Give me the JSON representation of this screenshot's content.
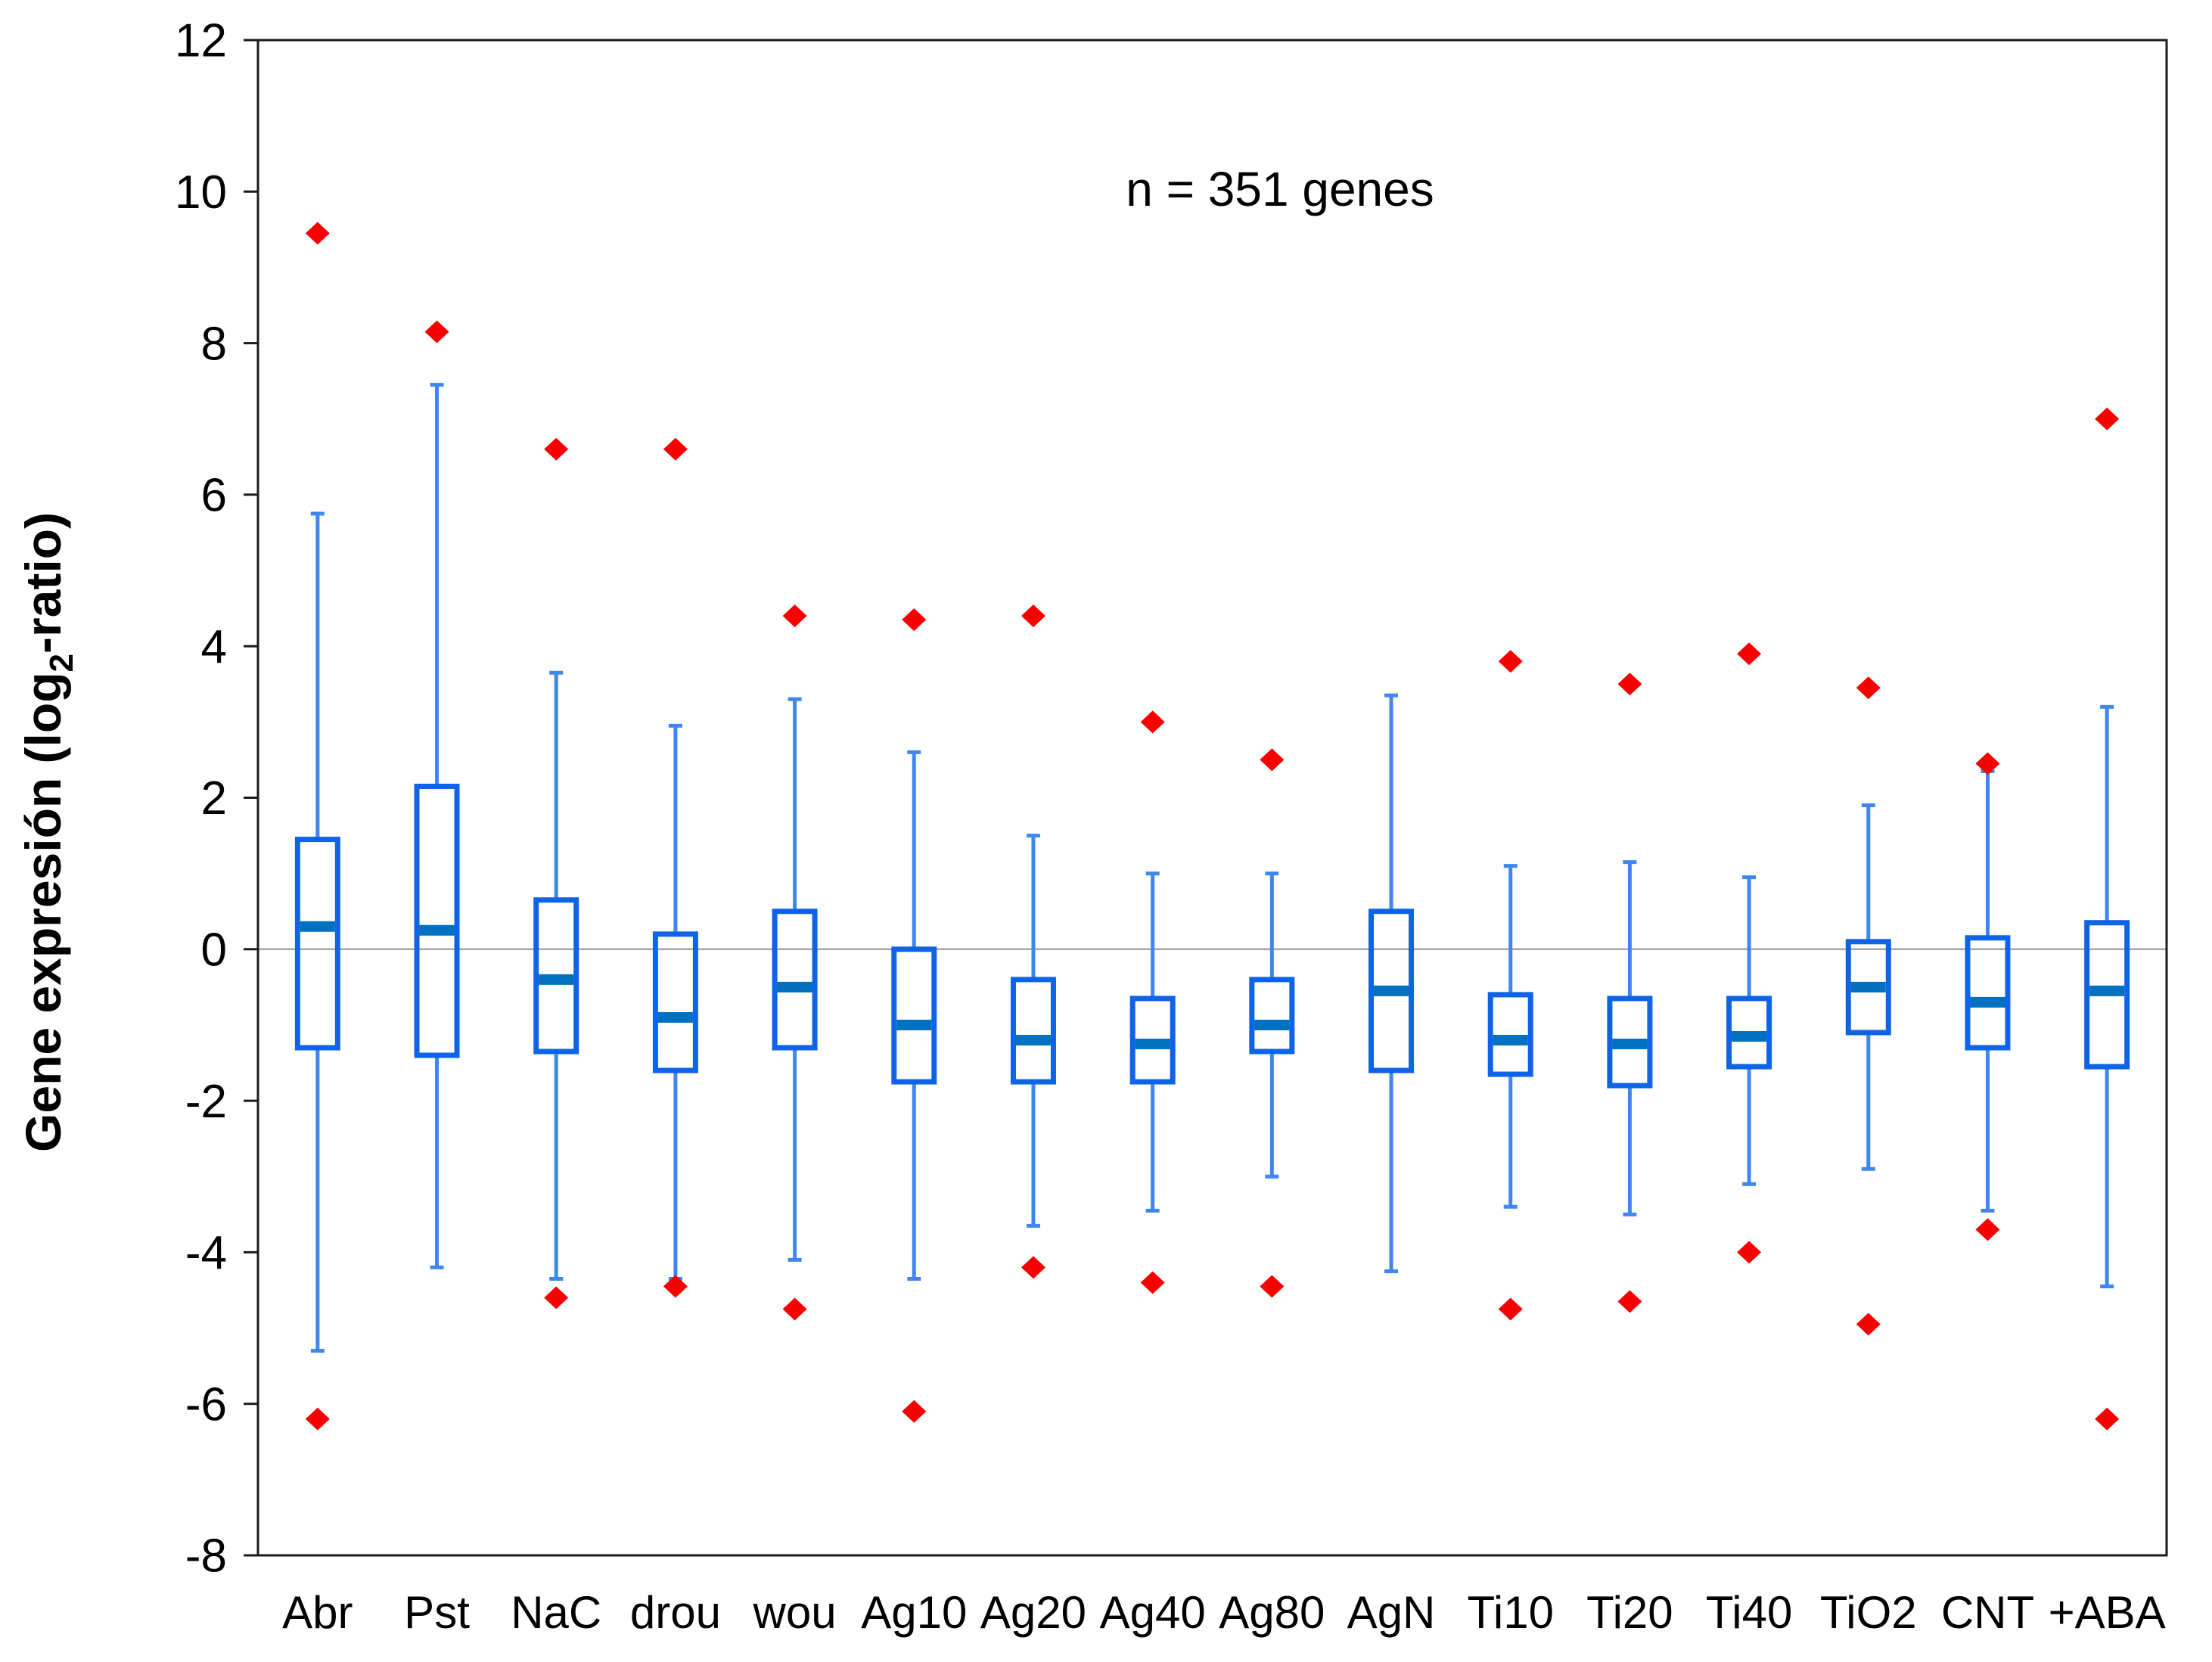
{
  "chart_data": {
    "type": "box",
    "annotation": "n = 351 genes",
    "ylabel": "Gene expresión (log2-ratio)",
    "ylabel_parts": {
      "pre": "Gene expresión (log",
      "sub": "2",
      "post": "-ratio)"
    },
    "xlabel": "",
    "ylim": [
      -8,
      12
    ],
    "ytick_step": 2,
    "yticks": [
      12,
      10,
      8,
      6,
      4,
      2,
      0,
      -2,
      -4,
      -6,
      -8
    ],
    "zero_line": true,
    "grid": false,
    "legend": false,
    "categories": [
      "Abr",
      "Pst",
      "NaC",
      "drou",
      "wou",
      "Ag10",
      "Ag20",
      "Ag40",
      "Ag80",
      "AgN",
      "Ti10",
      "Ti20",
      "Ti40",
      "TiO2",
      "CNT",
      "+ABA"
    ],
    "series": [
      {
        "label": "Abr",
        "whislo": -5.3,
        "q1": -1.3,
        "med": 0.3,
        "q3": 1.45,
        "whishi": 5.75,
        "outliers": [
          9.45,
          -6.2
        ]
      },
      {
        "label": "Pst",
        "whislo": -4.2,
        "q1": -1.4,
        "med": 0.25,
        "q3": 2.15,
        "whishi": 7.45,
        "outliers": [
          8.15
        ]
      },
      {
        "label": "NaC",
        "whislo": -4.35,
        "q1": -1.35,
        "med": -0.4,
        "q3": 0.65,
        "whishi": 3.65,
        "outliers": [
          6.6,
          -4.6
        ]
      },
      {
        "label": "drou",
        "whislo": -4.35,
        "q1": -1.6,
        "med": -0.9,
        "q3": 0.2,
        "whishi": 2.95,
        "outliers": [
          6.6,
          -4.45
        ]
      },
      {
        "label": "wou",
        "whislo": -4.1,
        "q1": -1.3,
        "med": -0.5,
        "q3": 0.5,
        "whishi": 3.3,
        "outliers": [
          4.4,
          -4.75
        ]
      },
      {
        "label": "Ag10",
        "whislo": -4.35,
        "q1": -1.75,
        "med": -1.0,
        "q3": 0.0,
        "whishi": 2.6,
        "outliers": [
          4.35,
          -6.1
        ]
      },
      {
        "label": "Ag20",
        "whislo": -3.65,
        "q1": -1.75,
        "med": -1.2,
        "q3": -0.4,
        "whishi": 1.5,
        "outliers": [
          4.4,
          -4.2
        ]
      },
      {
        "label": "Ag40",
        "whislo": -3.45,
        "q1": -1.75,
        "med": -1.25,
        "q3": -0.65,
        "whishi": 1.0,
        "outliers": [
          3.0,
          -4.4
        ]
      },
      {
        "label": "Ag80",
        "whislo": -3.0,
        "q1": -1.35,
        "med": -1.0,
        "q3": -0.4,
        "whishi": 1.0,
        "outliers": [
          2.5,
          -4.45
        ]
      },
      {
        "label": "AgN",
        "whislo": -4.25,
        "q1": -1.6,
        "med": -0.55,
        "q3": 0.5,
        "whishi": 3.35,
        "outliers": []
      },
      {
        "label": "Ti10",
        "whislo": -3.4,
        "q1": -1.65,
        "med": -1.2,
        "q3": -0.6,
        "whishi": 1.1,
        "outliers": [
          3.8,
          -4.75
        ]
      },
      {
        "label": "Ti20",
        "whislo": -3.5,
        "q1": -1.8,
        "med": -1.25,
        "q3": -0.65,
        "whishi": 1.15,
        "outliers": [
          3.5,
          -4.65
        ]
      },
      {
        "label": "Ti40",
        "whislo": -3.1,
        "q1": -1.55,
        "med": -1.15,
        "q3": -0.65,
        "whishi": 0.95,
        "outliers": [
          3.9,
          -4.0
        ]
      },
      {
        "label": "TiO2",
        "whislo": -2.9,
        "q1": -1.1,
        "med": -0.5,
        "q3": 0.1,
        "whishi": 1.9,
        "outliers": [
          3.45,
          -4.95
        ]
      },
      {
        "label": "CNT",
        "whislo": -3.45,
        "q1": -1.3,
        "med": -0.7,
        "q3": 0.15,
        "whishi": 2.35,
        "outliers": [
          2.45,
          -3.7
        ]
      },
      {
        "label": "+ABA",
        "whislo": -4.45,
        "q1": -1.55,
        "med": -0.55,
        "q3": 0.35,
        "whishi": 3.2,
        "outliers": [
          7.0,
          -6.2
        ]
      }
    ],
    "colors": {
      "box_stroke": "#0e63e6",
      "whisker": "#3f86f0",
      "median_fill": "#0070c0",
      "outlier_fill": "#f80000",
      "zero_line": "#a6a6a6",
      "axis": "#1a1a1a",
      "text": "#000000"
    }
  }
}
